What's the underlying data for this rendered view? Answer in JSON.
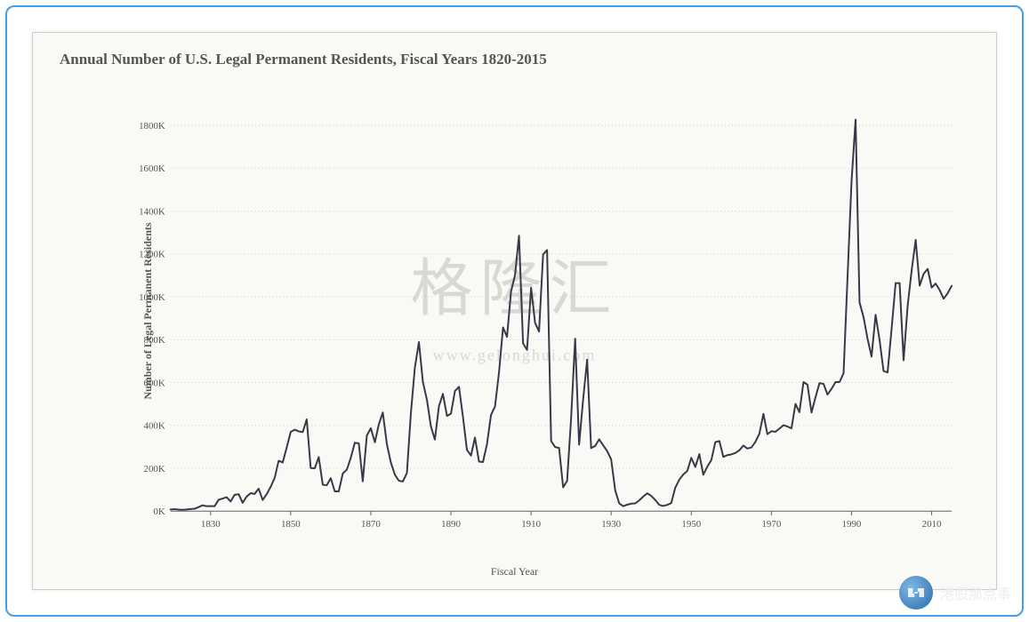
{
  "frame": {
    "outer_border_color": "#4a9de0",
    "panel_bg": "#f9f9f6",
    "panel_border": "#cccccc"
  },
  "chart": {
    "type": "line",
    "title": "Annual Number of U.S. Legal Permanent Residents, Fiscal Years 1820-2015",
    "title_color": "#555555",
    "title_fontsize": 17,
    "xlabel": "Fiscal Year",
    "ylabel": "Number of Legal Permanent Residents",
    "label_color": "#555555",
    "label_fontsize": 12,
    "background_color": "#f9f9f6",
    "line_color": "#383846",
    "line_width": 2,
    "grid_color": "#bfbfbf",
    "grid_dash": "1,3",
    "axis_color": "#666666",
    "tick_fontsize": 11,
    "tick_color": "#555555",
    "xlim": [
      1820,
      2015
    ],
    "ylim": [
      0,
      1900
    ],
    "yticks": [
      0,
      200,
      400,
      600,
      800,
      1000,
      1200,
      1400,
      1600,
      1800
    ],
    "ytick_labels": [
      "0K",
      "200K",
      "400K",
      "600K",
      "800K",
      "1000K",
      "1200K",
      "1400K",
      "1600K",
      "1800K"
    ],
    "xticks": [
      1830,
      1850,
      1870,
      1890,
      1910,
      1930,
      1950,
      1970,
      1990,
      2010
    ],
    "xtick_labels": [
      "1830",
      "1850",
      "1870",
      "1890",
      "1910",
      "1930",
      "1950",
      "1970",
      "1990",
      "2010"
    ],
    "series": {
      "years": [
        1820,
        1821,
        1822,
        1823,
        1824,
        1825,
        1826,
        1827,
        1828,
        1829,
        1830,
        1831,
        1832,
        1833,
        1834,
        1835,
        1836,
        1837,
        1838,
        1839,
        1840,
        1841,
        1842,
        1843,
        1844,
        1845,
        1846,
        1847,
        1848,
        1849,
        1850,
        1851,
        1852,
        1853,
        1854,
        1855,
        1856,
        1857,
        1858,
        1859,
        1860,
        1861,
        1862,
        1863,
        1864,
        1865,
        1866,
        1867,
        1868,
        1869,
        1870,
        1871,
        1872,
        1873,
        1874,
        1875,
        1876,
        1877,
        1878,
        1879,
        1880,
        1881,
        1882,
        1883,
        1884,
        1885,
        1886,
        1887,
        1888,
        1889,
        1890,
        1891,
        1892,
        1893,
        1894,
        1895,
        1896,
        1897,
        1898,
        1899,
        1900,
        1901,
        1902,
        1903,
        1904,
        1905,
        1906,
        1907,
        1908,
        1909,
        1910,
        1911,
        1912,
        1913,
        1914,
        1915,
        1916,
        1917,
        1918,
        1919,
        1920,
        1921,
        1922,
        1923,
        1924,
        1925,
        1926,
        1927,
        1928,
        1929,
        1930,
        1931,
        1932,
        1933,
        1934,
        1935,
        1936,
        1937,
        1938,
        1939,
        1940,
        1941,
        1942,
        1943,
        1944,
        1945,
        1946,
        1947,
        1948,
        1949,
        1950,
        1951,
        1952,
        1953,
        1954,
        1955,
        1956,
        1957,
        1958,
        1959,
        1960,
        1961,
        1962,
        1963,
        1964,
        1965,
        1966,
        1967,
        1968,
        1969,
        1970,
        1971,
        1972,
        1973,
        1974,
        1975,
        1976,
        1977,
        1978,
        1979,
        1980,
        1981,
        1982,
        1983,
        1984,
        1985,
        1986,
        1987,
        1988,
        1989,
        1990,
        1991,
        1992,
        1993,
        1994,
        1995,
        1996,
        1997,
        1998,
        1999,
        2000,
        2001,
        2002,
        2003,
        2004,
        2005,
        2006,
        2007,
        2008,
        2009,
        2010,
        2011,
        2012,
        2013,
        2014,
        2015
      ],
      "values": [
        8,
        9,
        7,
        6,
        8,
        10,
        11,
        19,
        27,
        23,
        23,
        23,
        53,
        59,
        65,
        45,
        76,
        79,
        39,
        68,
        84,
        80,
        105,
        52,
        79,
        114,
        155,
        235,
        227,
        297,
        370,
        380,
        372,
        369,
        428,
        201,
        200,
        252,
        123,
        121,
        154,
        92,
        92,
        176,
        193,
        249,
        319,
        316,
        139,
        353,
        387,
        321,
        405,
        460,
        313,
        227,
        170,
        142,
        138,
        178,
        457,
        669,
        789,
        603,
        519,
        395,
        334,
        490,
        547,
        444,
        455,
        560,
        580,
        440,
        286,
        259,
        343,
        231,
        229,
        312,
        449,
        488,
        649,
        857,
        813,
        1026,
        1101,
        1285,
        783,
        752,
        1042,
        879,
        838,
        1198,
        1218,
        327,
        299,
        295,
        111,
        141,
        430,
        805,
        310,
        523,
        707,
        294,
        304,
        335,
        307,
        280,
        242,
        97,
        36,
        23,
        30,
        35,
        36,
        50,
        68,
        83,
        71,
        52,
        29,
        24,
        29,
        38,
        109,
        147,
        171,
        188,
        249,
        206,
        266,
        170,
        208,
        238,
        322,
        327,
        253,
        261,
        265,
        271,
        284,
        306,
        292,
        297,
        323,
        362,
        454,
        359,
        373,
        370,
        385,
        401,
        395,
        386,
        500,
        462,
        602,
        590,
        460,
        531,
        597,
        594,
        544,
        570,
        602,
        602,
        643,
        1091,
        1536,
        1827,
        974,
        904,
        804,
        721,
        916,
        798,
        654,
        647,
        850,
        1064,
        1064,
        704,
        958,
        1122,
        1266,
        1052,
        1107,
        1130,
        1043,
        1062,
        1031,
        991,
        1017,
        1051
      ]
    }
  },
  "watermark": {
    "text": "格隆汇",
    "url": "www.gelonghui.com",
    "color": "#d8d8d4"
  },
  "badge": {
    "text": "港股那点事"
  }
}
